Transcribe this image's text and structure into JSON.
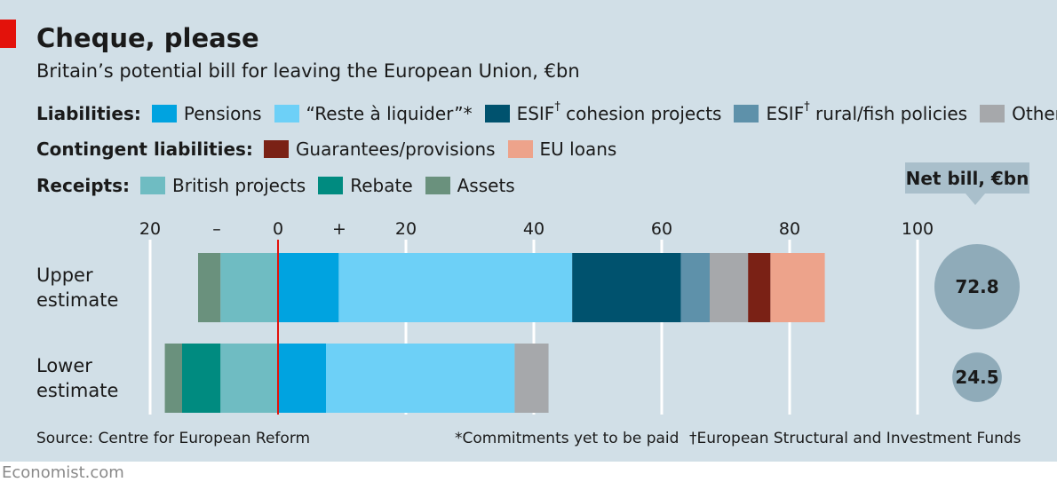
{
  "title": "Cheque, please",
  "subtitle": "Britain’s potential bill for leaving the European Union, €bn",
  "legend": {
    "liabilities_label": "Liabilities:",
    "liabilities": [
      {
        "label": "Pensions",
        "color": "#00a3e0"
      },
      {
        "label": "“Reste à liquider”*",
        "color": "#6dd0f7"
      },
      {
        "label": "ESIF",
        "sup": "†",
        "rest": " cohesion projects",
        "color": "#00526e"
      },
      {
        "label": "ESIF",
        "sup": "†",
        "rest": " rural/fish policies",
        "color": "#5e91aa"
      },
      {
        "label": "Other",
        "color": "#a6a8ab"
      }
    ],
    "contingent_label": "Contingent liabilities:",
    "contingent": [
      {
        "label": "Guarantees/provisions",
        "color": "#7a2115"
      },
      {
        "label": "EU loans",
        "color": "#eda38b"
      }
    ],
    "receipts_label": "Receipts:",
    "receipts": [
      {
        "label": "British projects",
        "color": "#6fbcc2"
      },
      {
        "label": "Rebate",
        "color": "#008b80"
      },
      {
        "label": "Assets",
        "color": "#6a917d"
      }
    ]
  },
  "net_bill_label": "Net bill, €bn",
  "chart_data": {
    "type": "bar",
    "orientation": "horizontal-stacked",
    "categories": [
      "Upper\nestimate",
      "Lower\nestimate"
    ],
    "x_ticks": [
      "20",
      "0",
      "20",
      "40",
      "60",
      "80",
      "100"
    ],
    "x_tick_values": [
      -20,
      0,
      20,
      40,
      60,
      80,
      100
    ],
    "minus_label": "–",
    "plus_label": "+",
    "xlim": [
      -20,
      100
    ],
    "gridlines": [
      -20,
      20,
      40,
      60,
      80,
      100
    ],
    "bars": [
      {
        "category": "Upper estimate",
        "negative": [
          {
            "series": "British projects",
            "value": 9,
            "color": "#6fbcc2"
          },
          {
            "series": "Assets",
            "value": 3.5,
            "color": "#6a917d"
          }
        ],
        "positive": [
          {
            "series": "Pensions",
            "value": 9.5,
            "color": "#00a3e0"
          },
          {
            "series": "“Reste à liquider”*",
            "value": 36.5,
            "color": "#6dd0f7"
          },
          {
            "series": "ESIF cohesion projects",
            "value": 17,
            "color": "#00526e"
          },
          {
            "series": "ESIF rural/fish policies",
            "value": 4.5,
            "color": "#5e91aa"
          },
          {
            "series": "Other",
            "value": 6,
            "color": "#a6a8ab"
          },
          {
            "series": "Guarantees/provisions",
            "value": 3.5,
            "color": "#7a2115"
          },
          {
            "series": "EU loans",
            "value": 8.5,
            "color": "#eda38b"
          }
        ],
        "net_bill": "72.8",
        "net_bill_value": 72.8
      },
      {
        "category": "Lower estimate",
        "negative": [
          {
            "series": "British projects",
            "value": 9,
            "color": "#6fbcc2"
          },
          {
            "series": "Rebate",
            "value": 6,
            "color": "#008b80"
          },
          {
            "series": "Assets",
            "value": 2.7,
            "color": "#6a917d"
          }
        ],
        "positive": [
          {
            "series": "Pensions",
            "value": 7.5,
            "color": "#00a3e0"
          },
          {
            "series": "“Reste à liquider”*",
            "value": 29.5,
            "color": "#6dd0f7"
          },
          {
            "series": "Other",
            "value": 5.3,
            "color": "#a6a8ab"
          }
        ],
        "net_bill": "24.5",
        "net_bill_value": 24.5
      }
    ]
  },
  "source": "Source: Centre for European Reform",
  "footnote_star": "*Commitments yet to be paid",
  "footnote_dagger": "†European Structural and Investment Funds",
  "brand": "Economist.com",
  "colors": {
    "background": "#d1dfe7",
    "accent_red": "#e3120b",
    "zero_line": "#e3120b",
    "bubble": "#8fabb9",
    "net_box": "#a9bfcb"
  }
}
